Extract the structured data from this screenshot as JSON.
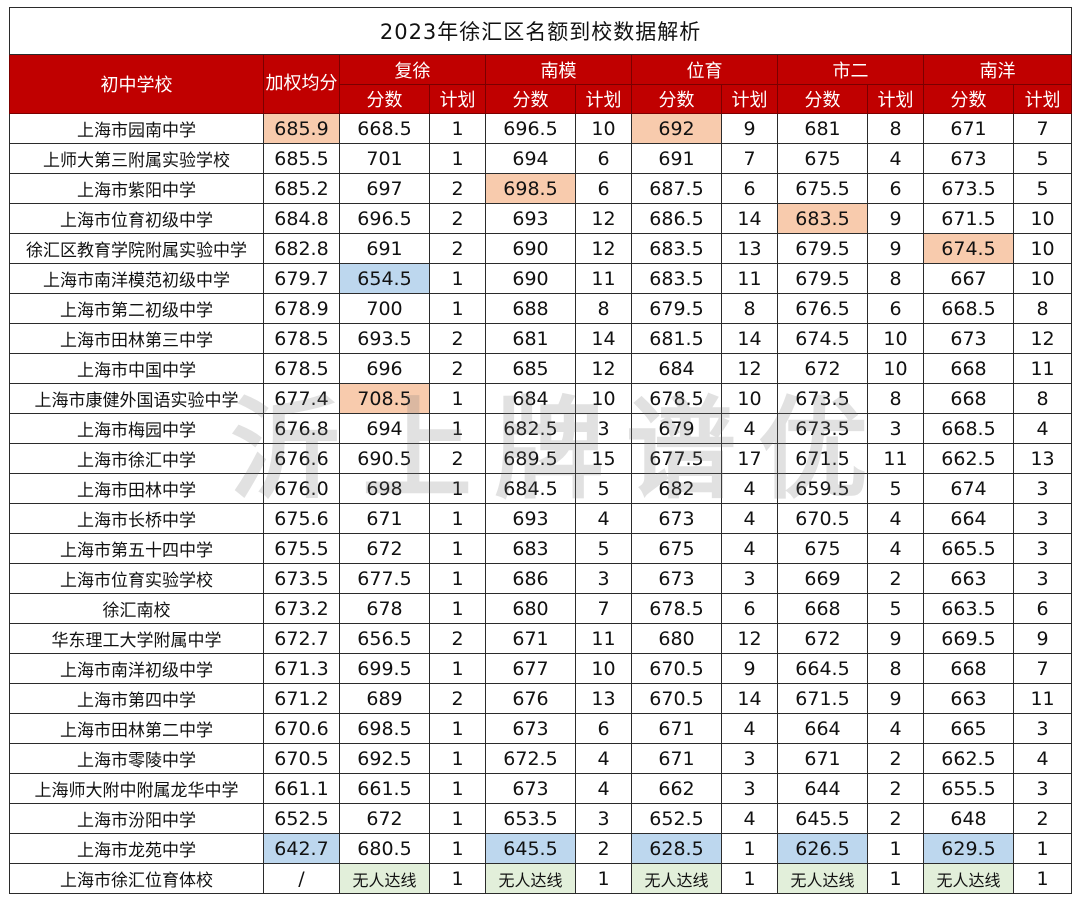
{
  "title": "2023年徐汇区名额到校数据解析",
  "header": {
    "school": "初中学校",
    "avg": "加权均分",
    "groups": [
      "复徐",
      "南模",
      "位育",
      "市二",
      "南洋"
    ],
    "score": "分数",
    "plan": "计划"
  },
  "watermark": "沂上牌谱优",
  "colors": {
    "header_red": "#c00000",
    "orange": "#f8cbad",
    "blue": "#bdd7ee",
    "green": "#e2efda"
  },
  "rows": [
    {
      "school": "上海市园南中学",
      "avg": "685.9",
      "cells": [
        "668.5",
        "1",
        "696.5",
        "10",
        "692",
        "9",
        "681",
        "8",
        "671",
        "7"
      ],
      "hl": {
        "avg": "orange",
        "4": "orange"
      }
    },
    {
      "school": "上师大第三附属实验学校",
      "avg": "685.5",
      "cells": [
        "701",
        "1",
        "694",
        "6",
        "691",
        "7",
        "675",
        "4",
        "673",
        "5"
      ],
      "hl": {}
    },
    {
      "school": "上海市紫阳中学",
      "avg": "685.2",
      "cells": [
        "697",
        "2",
        "698.5",
        "6",
        "687.5",
        "6",
        "675.5",
        "6",
        "673.5",
        "5"
      ],
      "hl": {
        "2": "orange"
      }
    },
    {
      "school": "上海市位育初级中学",
      "avg": "684.8",
      "cells": [
        "696.5",
        "2",
        "693",
        "12",
        "686.5",
        "14",
        "683.5",
        "9",
        "671.5",
        "10"
      ],
      "hl": {
        "6": "orange"
      }
    },
    {
      "school": "徐汇区教育学院附属实验中学",
      "avg": "682.8",
      "cells": [
        "691",
        "2",
        "690",
        "12",
        "683.5",
        "13",
        "679.5",
        "9",
        "674.5",
        "10"
      ],
      "hl": {
        "8": "orange"
      }
    },
    {
      "school": "上海市南洋模范初级中学",
      "avg": "679.7",
      "cells": [
        "654.5",
        "1",
        "690",
        "11",
        "683.5",
        "11",
        "679.5",
        "8",
        "667",
        "10"
      ],
      "hl": {
        "0": "blue"
      }
    },
    {
      "school": "上海市第二初级中学",
      "avg": "678.9",
      "cells": [
        "700",
        "1",
        "688",
        "8",
        "679.5",
        "8",
        "676.5",
        "6",
        "668.5",
        "8"
      ],
      "hl": {}
    },
    {
      "school": "上海市田林第三中学",
      "avg": "678.5",
      "cells": [
        "693.5",
        "2",
        "681",
        "14",
        "681.5",
        "14",
        "674.5",
        "10",
        "673",
        "12"
      ],
      "hl": {}
    },
    {
      "school": "上海市中国中学",
      "avg": "678.5",
      "cells": [
        "696",
        "2",
        "685",
        "12",
        "684",
        "12",
        "672",
        "10",
        "668",
        "11"
      ],
      "hl": {}
    },
    {
      "school": "上海市康健外国语实验中学",
      "avg": "677.4",
      "cells": [
        "708.5",
        "1",
        "684",
        "10",
        "678.5",
        "10",
        "673.5",
        "8",
        "668",
        "8"
      ],
      "hl": {
        "0": "orange"
      }
    },
    {
      "school": "上海市梅园中学",
      "avg": "676.8",
      "cells": [
        "694",
        "1",
        "682.5",
        "3",
        "679",
        "4",
        "673.5",
        "3",
        "668.5",
        "4"
      ],
      "hl": {}
    },
    {
      "school": "上海市徐汇中学",
      "avg": "676.6",
      "cells": [
        "690.5",
        "2",
        "689.5",
        "15",
        "677.5",
        "17",
        "671.5",
        "11",
        "662.5",
        "13"
      ],
      "hl": {}
    },
    {
      "school": "上海市田林中学",
      "avg": "676.0",
      "cells": [
        "698",
        "1",
        "684.5",
        "5",
        "682",
        "4",
        "659.5",
        "5",
        "674",
        "3"
      ],
      "hl": {}
    },
    {
      "school": "上海市长桥中学",
      "avg": "675.6",
      "cells": [
        "671",
        "1",
        "693",
        "4",
        "673",
        "4",
        "670.5",
        "4",
        "664",
        "3"
      ],
      "hl": {}
    },
    {
      "school": "上海市第五十四中学",
      "avg": "675.5",
      "cells": [
        "672",
        "1",
        "683",
        "5",
        "675",
        "4",
        "675",
        "4",
        "665.5",
        "3"
      ],
      "hl": {}
    },
    {
      "school": "上海市位育实验学校",
      "avg": "673.5",
      "cells": [
        "677.5",
        "1",
        "686",
        "3",
        "673",
        "3",
        "669",
        "2",
        "663",
        "3"
      ],
      "hl": {}
    },
    {
      "school": "徐汇南校",
      "avg": "673.2",
      "cells": [
        "678",
        "1",
        "680",
        "7",
        "678.5",
        "6",
        "668",
        "5",
        "663.5",
        "6"
      ],
      "hl": {}
    },
    {
      "school": "华东理工大学附属中学",
      "avg": "672.7",
      "cells": [
        "656.5",
        "2",
        "671",
        "11",
        "680",
        "12",
        "672",
        "9",
        "669.5",
        "9"
      ],
      "hl": {}
    },
    {
      "school": "上海市南洋初级中学",
      "avg": "671.3",
      "cells": [
        "699.5",
        "1",
        "677",
        "10",
        "670.5",
        "9",
        "664.5",
        "8",
        "668",
        "7"
      ],
      "hl": {}
    },
    {
      "school": "上海市第四中学",
      "avg": "671.2",
      "cells": [
        "689",
        "2",
        "676",
        "13",
        "670.5",
        "14",
        "671.5",
        "9",
        "663",
        "11"
      ],
      "hl": {}
    },
    {
      "school": "上海市田林第二中学",
      "avg": "670.6",
      "cells": [
        "698.5",
        "1",
        "673",
        "6",
        "671",
        "4",
        "664",
        "4",
        "665",
        "3"
      ],
      "hl": {}
    },
    {
      "school": "上海市零陵中学",
      "avg": "670.5",
      "cells": [
        "692.5",
        "1",
        "672.5",
        "4",
        "671",
        "3",
        "671",
        "2",
        "662.5",
        "4"
      ],
      "hl": {}
    },
    {
      "school": "上海师大附中附属龙华中学",
      "avg": "661.1",
      "cells": [
        "661.5",
        "1",
        "673",
        "4",
        "662",
        "3",
        "644",
        "2",
        "655.5",
        "3"
      ],
      "hl": {}
    },
    {
      "school": "上海市汾阳中学",
      "avg": "652.5",
      "cells": [
        "672",
        "1",
        "653.5",
        "3",
        "652.5",
        "4",
        "645.5",
        "2",
        "648",
        "2"
      ],
      "hl": {}
    },
    {
      "school": "上海市龙苑中学",
      "avg": "642.7",
      "cells": [
        "680.5",
        "1",
        "645.5",
        "2",
        "628.5",
        "1",
        "626.5",
        "1",
        "629.5",
        "1"
      ],
      "hl": {
        "avg": "blue",
        "2": "blue",
        "4": "blue",
        "6": "blue",
        "8": "blue"
      }
    },
    {
      "school": "上海市徐汇位育体校",
      "avg": "/",
      "cells": [
        "无人达线",
        "1",
        "无人达线",
        "1",
        "无人达线",
        "1",
        "无人达线",
        "1",
        "无人达线",
        "1"
      ],
      "hl": {
        "0": "green",
        "2": "green",
        "4": "green",
        "6": "green",
        "8": "green"
      }
    }
  ]
}
